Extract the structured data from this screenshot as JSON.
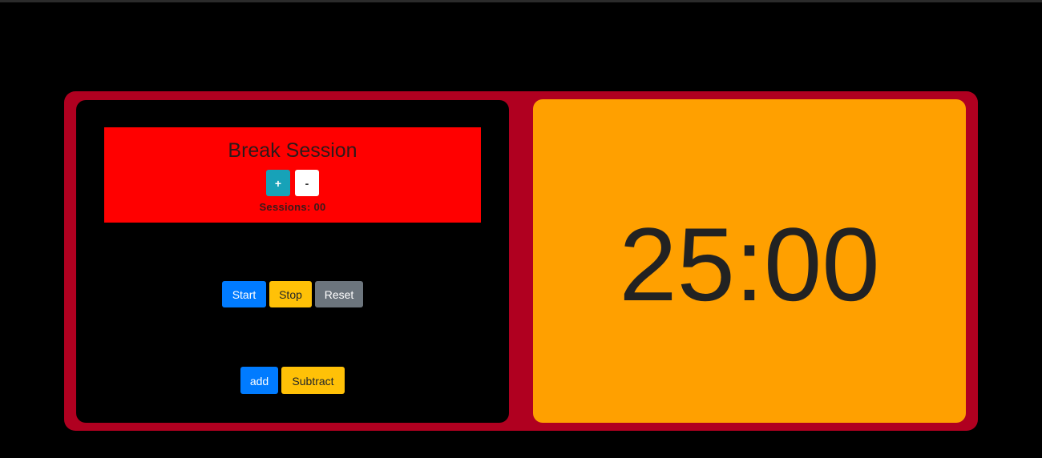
{
  "break_session": {
    "title": "Break Session",
    "plus_label": "+",
    "minus_label": "-",
    "sessions_text": "Sessions: 00"
  },
  "controls": {
    "start_label": "Start",
    "stop_label": "Stop",
    "reset_label": "Reset"
  },
  "adjust": {
    "add_label": "add",
    "subtract_label": "Subtract"
  },
  "timer": {
    "display": "25:00"
  },
  "colors": {
    "frame": "#b00020",
    "session_box": "#ff0000",
    "timer_panel": "#ffa000",
    "primary": "#007bff",
    "warning": "#ffc107",
    "secondary": "#6c757d",
    "info": "#17a2b8"
  }
}
